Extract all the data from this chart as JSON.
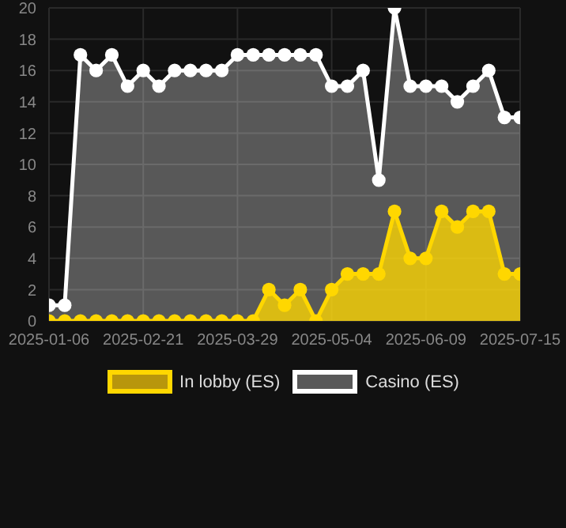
{
  "chart_data": {
    "type": "area",
    "categories": [
      "2025-01-06",
      null,
      null,
      null,
      null,
      null,
      "2025-02-21",
      null,
      null,
      null,
      null,
      null,
      "2025-03-29",
      null,
      null,
      null,
      null,
      null,
      "2025-05-04",
      null,
      null,
      null,
      null,
      null,
      "2025-06-09",
      null,
      null,
      null,
      null,
      null,
      "2025-07-15"
    ],
    "series": [
      {
        "name": "In lobby (ES)",
        "color": "#ffd700",
        "values": [
          0,
          0,
          0,
          0,
          0,
          0,
          0,
          0,
          0,
          0,
          0,
          0,
          0,
          0,
          2,
          1,
          2,
          0,
          2,
          3,
          3,
          3,
          7,
          4,
          4,
          7,
          6,
          7,
          7,
          3,
          3
        ]
      },
      {
        "name": "Casino (ES)",
        "color": "#ffffff",
        "values": [
          1,
          1,
          17,
          16,
          17,
          15,
          16,
          15,
          16,
          16,
          16,
          16,
          17,
          17,
          17,
          17,
          17,
          17,
          15,
          15,
          16,
          9,
          20,
          15,
          15,
          15,
          14,
          15,
          16,
          13,
          13
        ]
      }
    ],
    "ylim": [
      0,
      20
    ],
    "yticks": [
      0,
      2,
      4,
      6,
      8,
      10,
      12,
      14,
      16,
      18,
      20
    ],
    "grid": true,
    "legend": "bottom",
    "marker": "circle",
    "line_style": "solid"
  }
}
